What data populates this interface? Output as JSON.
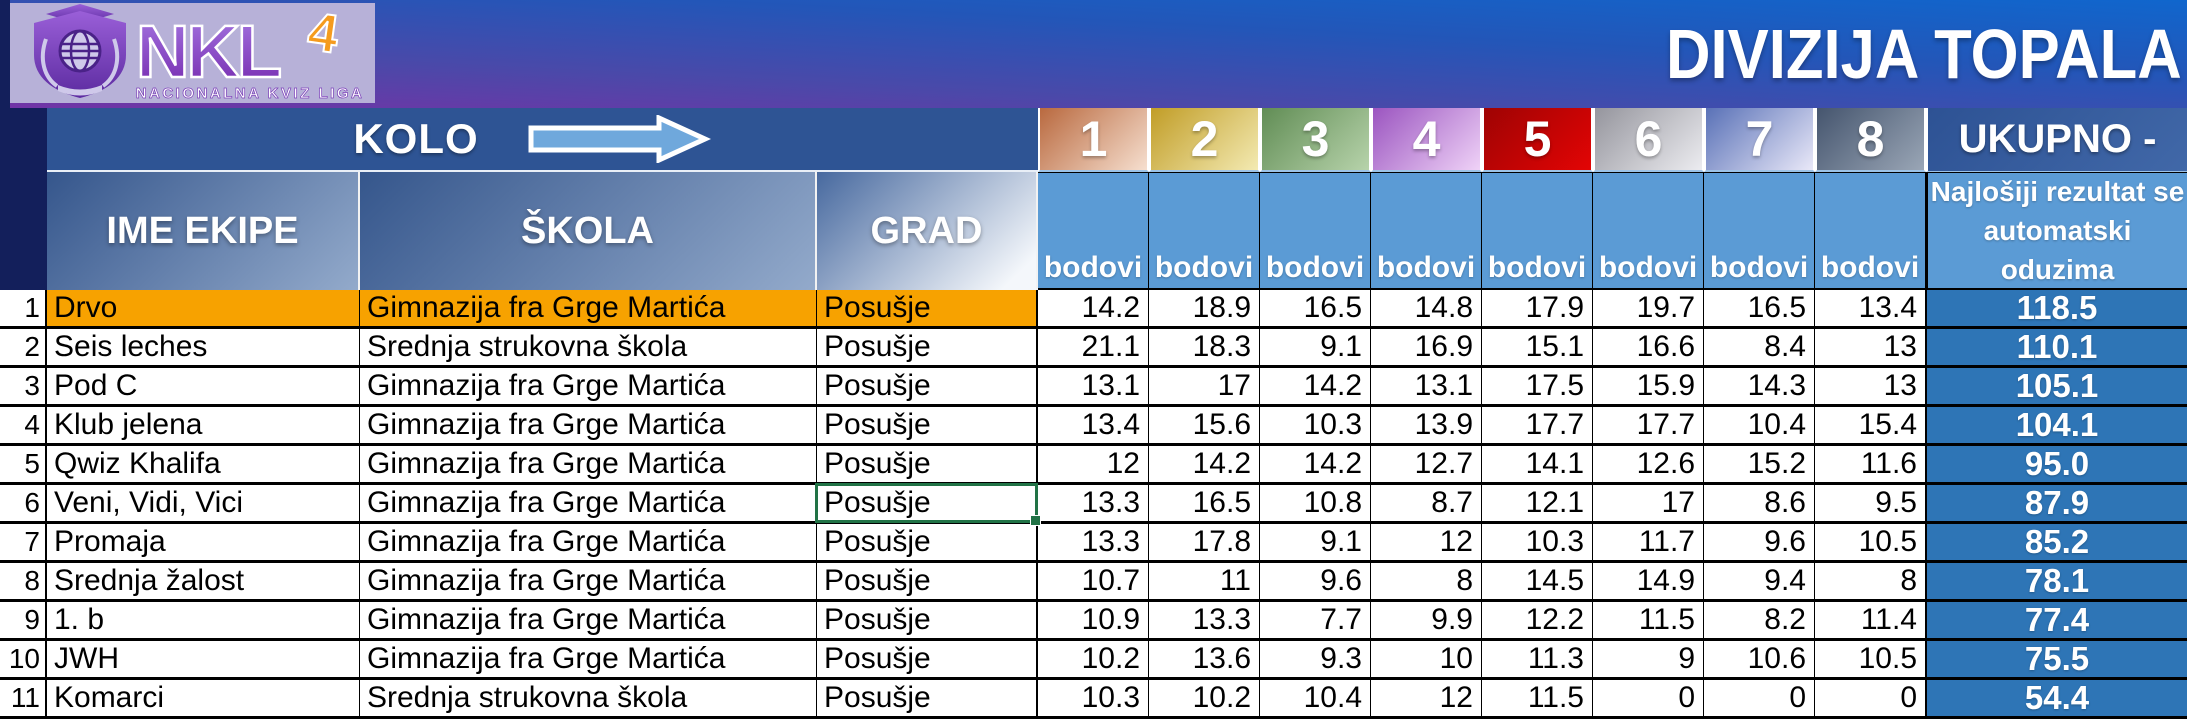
{
  "banner": {
    "title": "DIVIZIJA TOPALA",
    "logo": {
      "acronym": "NKL",
      "edition": "4",
      "subtitle": "NACIONALNA KVIZ LIGA"
    }
  },
  "table": {
    "kolo_label": "KOLO",
    "ukupno_label": "UKUPNO -",
    "team_header": "IME EKIPE",
    "school_header": "ŠKOLA",
    "city_header": "GRAD",
    "bodovi_label": "bodovi",
    "ukupno_note": "Najlošiji rezultat se automatski oduzima",
    "rounds": [
      {
        "label": "1",
        "color_top": "#b9693f",
        "color_bottom": "#f6dfcf"
      },
      {
        "label": "2",
        "color_top": "#c19d27",
        "color_bottom": "#f3eab2"
      },
      {
        "label": "3",
        "color_top": "#618d55",
        "color_bottom": "#b7d3ab"
      },
      {
        "label": "4",
        "color_top": "#9b55c0",
        "color_bottom": "#efd2f7"
      },
      {
        "label": "5",
        "color_top": "#9e0303",
        "color_bottom": "#e30505"
      },
      {
        "label": "6",
        "color_top": "#95959d",
        "color_bottom": "#ececf0"
      },
      {
        "label": "7",
        "color_top": "#5971b7",
        "color_bottom": "#e9e8f8"
      },
      {
        "label": "8",
        "color_top": "#45556e",
        "color_bottom": "#9aa6b6"
      }
    ],
    "rows": [
      {
        "num": "1",
        "team": "Drvo",
        "school": "Gimnazija fra Grge Martića",
        "city": "Posušje",
        "scores": [
          "14.2",
          "18.9",
          "16.5",
          "14.8",
          "17.9",
          "19.7",
          "16.5",
          "13.4"
        ],
        "total": "118.5",
        "highlight": true
      },
      {
        "num": "2",
        "team": "Seis leches",
        "school": "Srednja strukovna škola",
        "city": "Posušje",
        "scores": [
          "21.1",
          "18.3",
          "9.1",
          "16.9",
          "15.1",
          "16.6",
          "8.4",
          "13"
        ],
        "total": "110.1"
      },
      {
        "num": "3",
        "team": "Pod C",
        "school": "Gimnazija fra Grge Martića",
        "city": "Posušje",
        "scores": [
          "13.1",
          "17",
          "14.2",
          "13.1",
          "17.5",
          "15.9",
          "14.3",
          "13"
        ],
        "total": "105.1"
      },
      {
        "num": "4",
        "team": "Klub jelena",
        "school": "Gimnazija fra Grge Martića",
        "city": "Posušje",
        "scores": [
          "13.4",
          "15.6",
          "10.3",
          "13.9",
          "17.7",
          "17.7",
          "10.4",
          "15.4"
        ],
        "total": "104.1"
      },
      {
        "num": "5",
        "team": "Qwiz Khalifa",
        "school": "Gimnazija fra Grge Martića",
        "city": "Posušje",
        "scores": [
          "12",
          "14.2",
          "14.2",
          "12.7",
          "14.1",
          "12.6",
          "15.2",
          "11.6"
        ],
        "total": "95.0"
      },
      {
        "num": "6",
        "team": "Veni, Vidi, Vici",
        "school": "Gimnazija fra Grge Martića",
        "city": "Posušje",
        "scores": [
          "13.3",
          "16.5",
          "10.8",
          "8.7",
          "12.1",
          "17",
          "8.6",
          "9.5"
        ],
        "total": "87.9",
        "selected": true
      },
      {
        "num": "7",
        "team": "Promaja",
        "school": "Gimnazija fra Grge Martića",
        "city": "Posušje",
        "scores": [
          "13.3",
          "17.8",
          "9.1",
          "12",
          "10.3",
          "11.7",
          "9.6",
          "10.5"
        ],
        "total": "85.2"
      },
      {
        "num": "8",
        "team": "Srednja žalost",
        "school": "Gimnazija fra Grge Martića",
        "city": "Posušje",
        "scores": [
          "10.7",
          "11",
          "9.6",
          "8",
          "14.5",
          "14.9",
          "9.4",
          "8"
        ],
        "total": "78.1"
      },
      {
        "num": "9",
        "team": "1. b",
        "school": "Gimnazija fra Grge Martića",
        "city": "Posušje",
        "scores": [
          "10.9",
          "13.3",
          "7.7",
          "9.9",
          "12.2",
          "11.5",
          "8.2",
          "11.4"
        ],
        "total": "77.4"
      },
      {
        "num": "10",
        "team": "JWH",
        "school": "Gimnazija fra Grge Martića",
        "city": "Posušje",
        "scores": [
          "10.2",
          "13.6",
          "9.3",
          "10",
          "11.3",
          "9",
          "10.6",
          "10.5"
        ],
        "total": "75.5"
      },
      {
        "num": "11",
        "team": "Komarci",
        "school": "Srednja strukovna škola",
        "city": "Posušje",
        "scores": [
          "10.3",
          "10.2",
          "10.4",
          "12",
          "11.5",
          "0",
          "0",
          "0"
        ],
        "total": "54.4"
      }
    ]
  },
  "selection": {
    "row": "6",
    "column": "GRAD"
  },
  "colors": {
    "banner_purple": "#7234a6",
    "banner_blue": "#1066cd",
    "kolo_band": "#2e5494",
    "bodovi_blue": "#5b9bd5",
    "total_blue": "#2e75b6",
    "highlight_orange": "#f7a200",
    "selection_green": "#217346",
    "arrow_fill": "#6fa8dc",
    "logo_background": "#b7b1d8",
    "logo_number_orange": "#f59b1e"
  }
}
